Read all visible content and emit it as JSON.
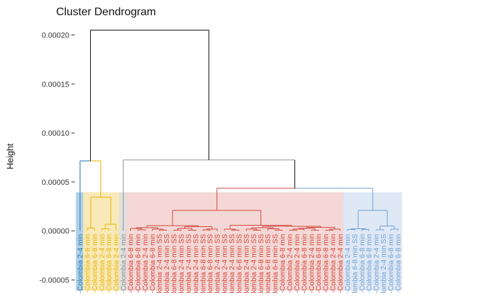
{
  "chart_data": {
    "type": "dendrogram",
    "title": "Cluster Dendrogram",
    "ylabel": "Height",
    "xlabel": "",
    "ylim": [
      -5e-05,
      0.0002
    ],
    "yticks": [
      {
        "v": 0.0002,
        "label": "0.00020"
      },
      {
        "v": 0.00015,
        "label": "0.00015"
      },
      {
        "v": 0.0001,
        "label": "0.00010"
      },
      {
        "v": 5e-05,
        "label": "0.00005"
      },
      {
        "v": 0.0,
        "label": "0.00000"
      },
      {
        "v": -5e-05,
        "label": "-0.00005"
      }
    ],
    "root_height": 0.000205,
    "clusters": [
      {
        "color": "#1F78B4",
        "rect": "#A9CBE3",
        "height": 7.15e-05,
        "leaves": [
          "-Colombia 2-4 min"
        ]
      },
      {
        "color": "#E8B400",
        "rect": "#F8E7B0",
        "height": 7.15e-05,
        "leaves": [
          "-Colombia 6-8 min",
          "-Colombia 6-8 min",
          "-Colombia 2-4 min",
          "-Colombia 6-8 min",
          "-Colombia 2-4 min"
        ]
      },
      {
        "color": "#8C8C8C",
        "rect": "#DEDEDE",
        "height": 7.25e-05,
        "leaves": [
          "-Colombia 2-4 min"
        ]
      },
      {
        "color": "#D0453A",
        "rect": "#F4D4D2",
        "height": 4.35e-05,
        "leaves": [
          "-Colombia 6-8 min",
          "-Colombia 6-8 min",
          "-Colombia 2-4 min",
          "-Colombia 6-8 min",
          "lombia 2-4 min SS",
          "lombia 2-4 min SS",
          "lombia 6-8 min SS",
          "lombia 2-4 min SS",
          "lombia 2-4 min SS",
          "lombia 2-4 min SS",
          "lombia 6-8 min SS",
          "lombia 6-8 min SS",
          "lombia 2-4 min SS",
          "lombia 2-4 min SS",
          "lombia 2-4 min SS",
          "lombia 6-8 min SS",
          "lombia 2-4 min SS",
          "lombia 2-4 min SS",
          "lombia 6-8 min SS",
          "lombia 6-8 min SS",
          "lombia 6-8 min SS",
          "-Colombia 6-8 min",
          "-Colombia 2-4 min",
          "-Colombia 2-4 min",
          "-Colombia 6-8 min",
          "-Colombia 2-4 min",
          "-Colombia 6-8 min",
          "-Colombia 6-8 min",
          "-Colombia 2-4 min",
          "-Colombia 2-4 min"
        ]
      },
      {
        "color": "#6F9FD3",
        "rect": "#DCE6F4",
        "height": 4.35e-05,
        "leaves": [
          "-Colombia 2-4 min",
          "lombia 6-8 min SS",
          "-Colombia 6-8 min",
          "-Colombia 6-8 min",
          "-Colombia 2-4 min",
          "lombia 2-4 min SS",
          "-Colombia 6-8 min",
          "-Colombia 6-8 min"
        ]
      }
    ],
    "top_links": [
      {
        "h": 7.25e-05,
        "left": "cluster-1..2",
        "right": "cluster-3..5",
        "color": "#111111"
      },
      {
        "h": 4.35e-05,
        "left": "cluster-4",
        "right": "cluster-5",
        "color": "#D0453A+#6F9FD3"
      },
      {
        "h": 7.15e-05,
        "left": "cluster-1",
        "right": "cluster-2",
        "color": "#1F78B4+#E8B400"
      },
      {
        "h": 0.000205,
        "left": "cluster-1..2",
        "right": "cluster-3..5",
        "color": "#111111"
      }
    ]
  }
}
